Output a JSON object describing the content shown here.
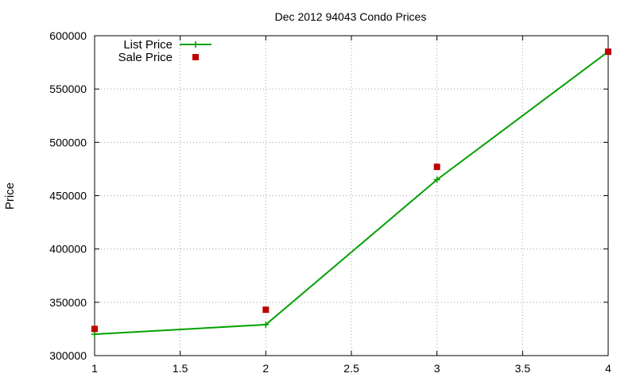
{
  "chart_data": {
    "type": "line",
    "title": "Dec 2012 94043 Condo Prices",
    "xlabel": "",
    "ylabel": "Price",
    "xlim": [
      1,
      4
    ],
    "ylim": [
      300000,
      600000
    ],
    "xticks": [
      1,
      1.5,
      2,
      2.5,
      3,
      3.5,
      4
    ],
    "xtick_labels": [
      "1",
      "1.5",
      "2",
      "2.5",
      "3",
      "3.5",
      "4"
    ],
    "yticks": [
      300000,
      350000,
      400000,
      450000,
      500000,
      550000,
      600000
    ],
    "ytick_labels": [
      "300000",
      "350000",
      "400000",
      "450000",
      "500000",
      "550000",
      "600000"
    ],
    "grid": true,
    "legend_position": "top-left",
    "series": [
      {
        "name": "List Price",
        "style": "linespoints",
        "marker": "plus",
        "color": "#00a000",
        "x": [
          1,
          2,
          3,
          4
        ],
        "y": [
          320000,
          329000,
          465000,
          585000
        ]
      },
      {
        "name": "Sale Price",
        "style": "points",
        "marker": "square",
        "color": "#c00000",
        "x": [
          1,
          2,
          3,
          4
        ],
        "y": [
          325000,
          343000,
          477000,
          585000
        ]
      }
    ]
  }
}
